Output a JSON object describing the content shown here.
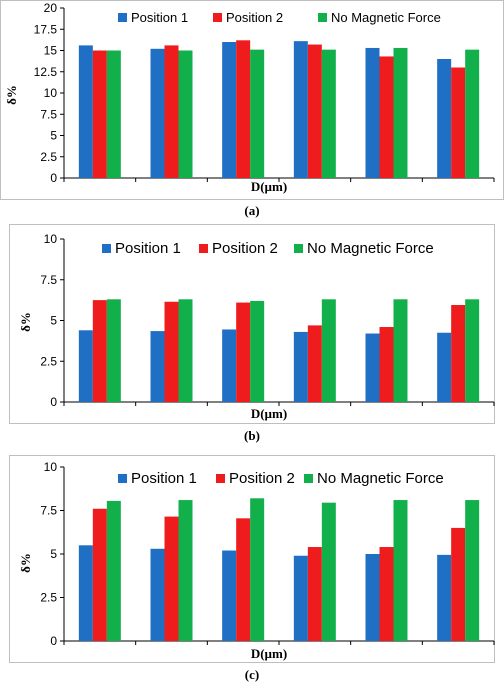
{
  "colors": {
    "position1": "#1f6fc4",
    "position2": "#ee1c1c",
    "nomag": "#12b04a"
  },
  "chart_data": [
    {
      "type": "bar",
      "caption": "(a)",
      "xlabel": "D(µm)",
      "ylabel": "δ%",
      "ylim": [
        0,
        20
      ],
      "yticks": [
        "0",
        "2.5",
        "5",
        "7.5",
        "10",
        "12.5",
        "15",
        "17.5",
        "20"
      ],
      "ytick_values": [
        0,
        2.5,
        5,
        7.5,
        10,
        12.5,
        15,
        17.5,
        20
      ],
      "categories": [
        "",
        "",
        "",
        "",
        "",
        ""
      ],
      "legend_position": "top",
      "series": [
        {
          "name": "Position 1",
          "values": [
            15.6,
            15.2,
            16.0,
            16.1,
            15.3,
            14.0
          ]
        },
        {
          "name": "Position 2",
          "values": [
            15.0,
            15.6,
            16.2,
            15.7,
            14.3,
            13.0
          ]
        },
        {
          "name": "No Magnetic Force",
          "values": [
            15.0,
            15.0,
            15.1,
            15.1,
            15.3,
            15.1
          ]
        }
      ]
    },
    {
      "type": "bar",
      "caption": "(b)",
      "xlabel": "D(µm)",
      "ylabel": "δ%",
      "ylim": [
        0,
        10
      ],
      "yticks": [
        "0",
        "2.5",
        "5",
        "7.5",
        "10"
      ],
      "ytick_values": [
        0,
        2.5,
        5,
        7.5,
        10
      ],
      "categories": [
        "",
        "",
        "",
        "",
        "",
        ""
      ],
      "legend_position": "top",
      "series": [
        {
          "name": "Position 1",
          "values": [
            4.4,
            4.35,
            4.45,
            4.3,
            4.2,
            4.25
          ]
        },
        {
          "name": "Position 2",
          "values": [
            6.25,
            6.15,
            6.1,
            4.7,
            4.6,
            5.95
          ]
        },
        {
          "name": "No Magnetic Force",
          "values": [
            6.3,
            6.3,
            6.2,
            6.3,
            6.3,
            6.3
          ]
        }
      ]
    },
    {
      "type": "bar",
      "caption": "(c)",
      "xlabel": "D(µm)",
      "ylabel": "δ%",
      "ylim": [
        0,
        10
      ],
      "yticks": [
        "0",
        "2.5",
        "5",
        "7.5",
        "10"
      ],
      "ytick_values": [
        0,
        2.5,
        5,
        7.5,
        10
      ],
      "categories": [
        "",
        "",
        "",
        "",
        "",
        ""
      ],
      "legend_position": "top",
      "series": [
        {
          "name": "Position 1",
          "values": [
            5.5,
            5.3,
            5.2,
            4.9,
            5.0,
            4.95
          ]
        },
        {
          "name": "Position 2",
          "values": [
            7.6,
            7.15,
            7.05,
            5.4,
            5.4,
            6.5
          ]
        },
        {
          "name": "No Magnetic Force",
          "values": [
            8.05,
            8.1,
            8.2,
            7.95,
            8.1,
            8.1
          ]
        }
      ]
    }
  ]
}
